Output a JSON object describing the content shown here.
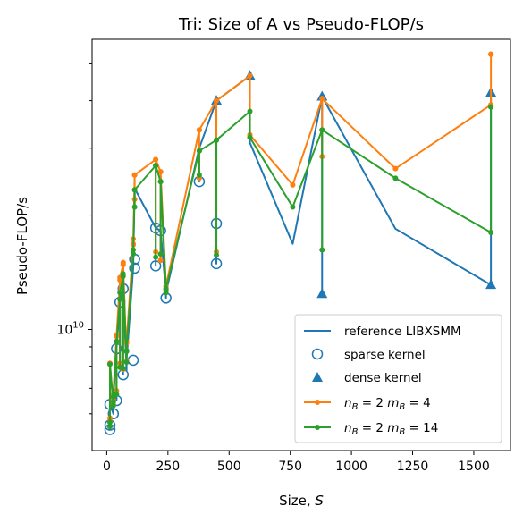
{
  "chart_data": {
    "type": "line",
    "title": "Tri: Size of A vs Pseudo-FLOP/s",
    "xlabel": "Size, S",
    "ylabel": "Pseudo-FLOP/s",
    "xlim": [
      -60,
      1650
    ],
    "ylim": [
      4800000000.0,
      58000000000.0
    ],
    "yscale": "log",
    "xticks": [
      0,
      250,
      500,
      750,
      1000,
      1250,
      1500
    ],
    "xtick_labels": [
      "0",
      "250",
      "500",
      "750",
      "1000",
      "1250",
      "1500"
    ],
    "ytick_major": [
      10000000000.0
    ],
    "ytick_major_label": "10^10",
    "ytick_minor": [
      6000000000.0,
      7000000000.0,
      8000000000.0,
      9000000000.0,
      20000000000.0,
      30000000000.0,
      40000000000.0,
      50000000000.0
    ],
    "grid": false,
    "legend_position": "lower-right",
    "colors": {
      "reference": "#1f77b4",
      "nb2mb4": "#ff7f0e",
      "nb2mb14": "#2ca02c"
    },
    "series": [
      {
        "key": "reference",
        "name": "reference LIBXSMM",
        "style": "line",
        "color": "#1f77b4",
        "x": [
          13,
          13,
          13,
          27,
          27,
          27,
          40,
          40,
          40,
          54,
          54,
          54,
          67,
          67,
          67,
          81,
          81,
          81,
          108,
          108,
          108,
          114,
          114,
          114,
          200,
          200,
          200,
          220,
          220,
          220,
          242,
          242,
          242,
          378,
          378,
          378,
          448,
          448,
          448,
          585,
          585,
          585,
          760,
          880,
          880,
          880,
          1180,
          1570,
          1570,
          1570
        ],
        "y": [
          5600000000.0,
          5450000000.0,
          6350000000.0,
          6000000000.0,
          6200000000.0,
          6600000000.0,
          8950000000.0,
          6500000000.0,
          8900000000.0,
          11800000000.0,
          7950000000.0,
          12000000000.0,
          12800000000.0,
          7600000000.0,
          12800000000.0,
          7800000000.0,
          8350000000.0,
          8300000000.0,
          14500000000.0,
          15300000000.0,
          14500000000.0,
          23500000000.0,
          21000000000.0,
          23500000000.0,
          18500000000.0,
          14700000000.0,
          18500000000.0,
          18200000000.0,
          17600000000.0,
          18200000000.0,
          12500000000.0,
          12100000000.0,
          12500000000.0,
          30000000000.0,
          24500000000.0,
          30000000000.0,
          40000000000.0,
          14900000000.0,
          40000000000.0,
          46500000000.0,
          31000000000.0,
          31000000000.0,
          16800000000.0,
          41000000000.0,
          12400000000.0,
          41000000000.0,
          18400000000.0,
          13100000000.0,
          42000000000.0,
          42000000000.0
        ]
      },
      {
        "key": "sparse",
        "name": "sparse kernel",
        "style": "marker",
        "marker": "open-circle",
        "color": "#1f77b4",
        "x": [
          13,
          13,
          13,
          27,
          40,
          40,
          54,
          67,
          67,
          108,
          114,
          114,
          200,
          200,
          220,
          242,
          378,
          448,
          448
        ],
        "y": [
          5600000000.0,
          5450000000.0,
          6350000000.0,
          6000000000.0,
          6500000000.0,
          8900000000.0,
          11800000000.0,
          7600000000.0,
          12800000000.0,
          8300000000.0,
          14500000000.0,
          15300000000.0,
          18500000000.0,
          14700000000.0,
          18200000000.0,
          12100000000.0,
          24500000000.0,
          14900000000.0,
          19000000000.0
        ]
      },
      {
        "key": "dense",
        "name": "dense kernel",
        "style": "marker",
        "marker": "filled-triangle",
        "color": "#1f77b4",
        "x": [
          448,
          585,
          880,
          880,
          1570,
          1570
        ],
        "y": [
          40000000000.0,
          46500000000.0,
          41000000000.0,
          12400000000.0,
          42000000000.0,
          13100000000.0
        ]
      },
      {
        "key": "nb2mb4",
        "name": "n_B = 2 m_B = 4",
        "name_parts": {
          "n": "n",
          "nsub": "B",
          "neq": " = 2 ",
          "m": "m",
          "msub": "B",
          "meq": " = 4"
        },
        "style": "line+marker",
        "color": "#ff7f0e",
        "x": [
          13,
          13,
          13,
          27,
          27,
          27,
          40,
          40,
          40,
          54,
          54,
          54,
          67,
          67,
          67,
          81,
          81,
          81,
          108,
          108,
          108,
          114,
          114,
          114,
          200,
          200,
          200,
          220,
          220,
          220,
          242,
          242,
          242,
          378,
          378,
          378,
          448,
          448,
          448,
          585,
          585,
          585,
          760,
          880,
          880,
          880,
          1180,
          1570,
          1570,
          1570
        ],
        "y": [
          5750000000.0,
          5850000000.0,
          8150000000.0,
          6350000000.0,
          6550000000.0,
          6750000000.0,
          9650000000.0,
          6900000000.0,
          9600000000.0,
          13500000000.0,
          8150000000.0,
          13700000000.0,
          14800000000.0,
          7850000000.0,
          15000000000.0,
          8250000000.0,
          9200000000.0,
          9300000000.0,
          16700000000.0,
          17300000000.0,
          16800000000.0,
          25500000000.0,
          22000000000.0,
          25500000000.0,
          28000000000.0,
          16000000000.0,
          28000000000.0,
          26000000000.0,
          15200000000.0,
          26000000000.0,
          13000000000.0,
          12700000000.0,
          13000000000.0,
          33500000000.0,
          25000000000.0,
          33500000000.0,
          40000000000.0,
          16000000000.0,
          40000000000.0,
          46500000000.0,
          32500000000.0,
          32500000000.0,
          24000000000.0,
          40500000000.0,
          28500000000.0,
          40500000000.0,
          26500000000.0,
          39000000000.0,
          53000000000.0,
          53000000000.0
        ]
      },
      {
        "key": "nb2mb14",
        "name": "n_B = 2 m_B = 14",
        "name_parts": {
          "n": "n",
          "nsub": "B",
          "neq": " = 2 ",
          "m": "m",
          "msub": "B",
          "meq": " = 14"
        },
        "style": "line+marker",
        "color": "#2ca02c",
        "x": [
          13,
          13,
          13,
          27,
          27,
          27,
          40,
          40,
          40,
          54,
          54,
          54,
          67,
          67,
          67,
          81,
          81,
          81,
          108,
          108,
          108,
          114,
          114,
          114,
          200,
          200,
          200,
          220,
          220,
          220,
          242,
          242,
          242,
          378,
          378,
          378,
          448,
          448,
          448,
          585,
          585,
          585,
          760,
          880,
          880,
          880,
          1180,
          1570,
          1570,
          1570
        ],
        "y": [
          5700000000.0,
          5550000000.0,
          8100000000.0,
          6300000000.0,
          6450000000.0,
          6650000000.0,
          9300000000.0,
          6750000000.0,
          9300000000.0,
          12000000000.0,
          7950000000.0,
          12500000000.0,
          13800000000.0,
          7900000000.0,
          14000000000.0,
          8200000000.0,
          8750000000.0,
          8800000000.0,
          15800000000.0,
          16200000000.0,
          15800000000.0,
          23300000000.0,
          21000000000.0,
          23300000000.0,
          27000000000.0,
          15500000000.0,
          27000000000.0,
          24500000000.0,
          15800000000.0,
          24500000000.0,
          12800000000.0,
          12500000000.0,
          12800000000.0,
          29500000000.0,
          25500000000.0,
          29500000000.0,
          31500000000.0,
          15700000000.0,
          31500000000.0,
          37500000000.0,
          32000000000.0,
          32000000000.0,
          21000000000.0,
          33500000000.0,
          16200000000.0,
          33500000000.0,
          25000000000.0,
          18000000000.0,
          38500000000.0,
          38500000000.0
        ]
      }
    ]
  }
}
